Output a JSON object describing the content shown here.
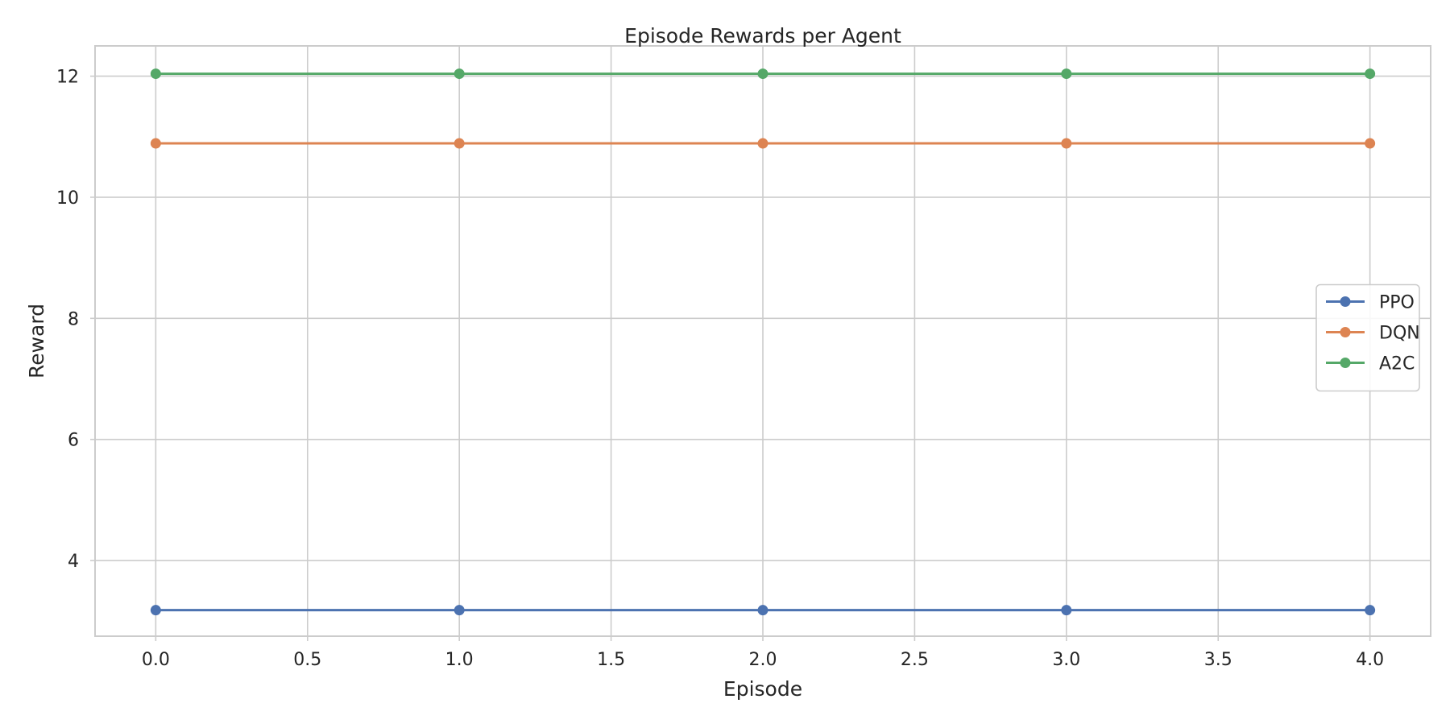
{
  "chart_data": {
    "type": "line",
    "title": "Episode Rewards per Agent",
    "xlabel": "Episode",
    "ylabel": "Reward",
    "xlim": [
      -0.2,
      4.2
    ],
    "ylim": [
      2.75,
      12.5
    ],
    "xticks": [
      0.0,
      0.5,
      1.0,
      1.5,
      2.0,
      2.5,
      3.0,
      3.5,
      4.0
    ],
    "xtick_labels": [
      "0.0",
      "0.5",
      "1.0",
      "1.5",
      "2.0",
      "2.5",
      "3.0",
      "3.5",
      "4.0"
    ],
    "yticks": [
      4,
      6,
      8,
      10,
      12
    ],
    "ytick_labels": [
      "4",
      "6",
      "8",
      "10",
      "12"
    ],
    "grid": true,
    "legend_position": "center-right",
    "x": [
      0,
      1,
      2,
      3,
      4
    ],
    "series": [
      {
        "name": "PPO",
        "color": "#4c72b0",
        "marker": "circle",
        "values": [
          3.18,
          3.18,
          3.18,
          3.18,
          3.18
        ]
      },
      {
        "name": "DQN",
        "color": "#dd8452",
        "marker": "circle",
        "values": [
          10.89,
          10.89,
          10.89,
          10.89,
          10.89
        ]
      },
      {
        "name": "A2C",
        "color": "#55a868",
        "marker": "circle",
        "values": [
          12.04,
          12.04,
          12.04,
          12.04,
          12.04
        ]
      }
    ]
  }
}
